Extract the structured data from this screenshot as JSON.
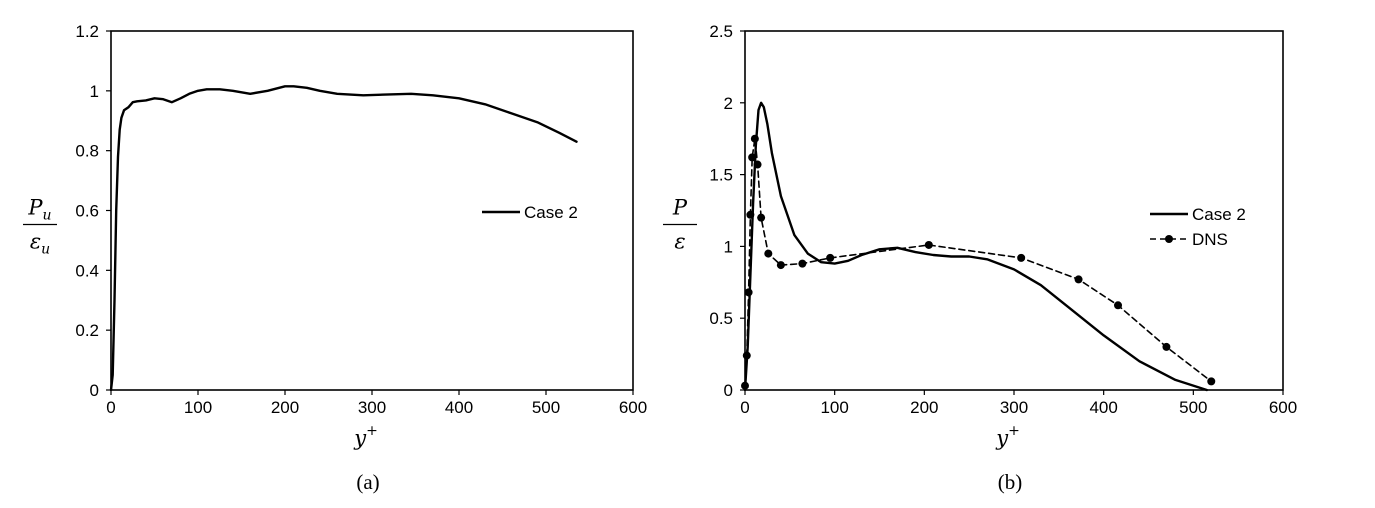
{
  "chart_data": [
    {
      "type": "line",
      "caption": "(a)",
      "xlabel": "y+",
      "ylabel": "P_u / ε_u",
      "ylabel_num": "P",
      "ylabel_num_sub": "u",
      "ylabel_den": "ε",
      "ylabel_den_sub": "u",
      "xlabel_base": "y",
      "xlabel_sup": "+",
      "xlim": [
        0,
        600
      ],
      "ylim": [
        0,
        1.2
      ],
      "xticks": [
        "0",
        "100",
        "200",
        "300",
        "400",
        "500",
        "600"
      ],
      "yticks": [
        "0",
        "0.2",
        "0.4",
        "0.6",
        "0.8",
        "1",
        "1.2"
      ],
      "grid": false,
      "legend_position": "right-middle",
      "series": [
        {
          "name": "Case 2",
          "style": "solid",
          "markers": false,
          "x": [
            0,
            2,
            4,
            6,
            8,
            10,
            12,
            15,
            20,
            25,
            30,
            40,
            50,
            60,
            70,
            80,
            90,
            100,
            110,
            125,
            140,
            160,
            180,
            200,
            210,
            225,
            240,
            260,
            290,
            320,
            345,
            370,
            400,
            430,
            460,
            490,
            515,
            535
          ],
          "y": [
            0,
            0.05,
            0.3,
            0.6,
            0.78,
            0.87,
            0.91,
            0.935,
            0.945,
            0.962,
            0.965,
            0.968,
            0.975,
            0.972,
            0.962,
            0.975,
            0.99,
            1.0,
            1.005,
            1.005,
            1.0,
            0.99,
            1.0,
            1.015,
            1.015,
            1.01,
            1.0,
            0.99,
            0.985,
            0.988,
            0.99,
            0.985,
            0.975,
            0.955,
            0.925,
            0.895,
            0.86,
            0.83
          ]
        }
      ]
    },
    {
      "type": "line",
      "caption": "(b)",
      "xlabel": "y+",
      "ylabel": "P / ε",
      "ylabel_num": "P",
      "ylabel_den": "ε",
      "xlabel_base": "y",
      "xlabel_sup": "+",
      "xlim": [
        0,
        600
      ],
      "ylim": [
        0,
        2.5
      ],
      "xticks": [
        "0",
        "100",
        "200",
        "300",
        "400",
        "500",
        "600"
      ],
      "yticks": [
        "0",
        "0.5",
        "1",
        "1.5",
        "2",
        "2.5"
      ],
      "grid": false,
      "legend_position": "right-middle",
      "series": [
        {
          "name": "Case 2",
          "style": "solid",
          "markers": false,
          "x": [
            0,
            3,
            6,
            9,
            12,
            15,
            18,
            21,
            25,
            30,
            40,
            55,
            70,
            85,
            100,
            115,
            130,
            150,
            170,
            190,
            210,
            230,
            250,
            270,
            300,
            330,
            360,
            400,
            440,
            480,
            515
          ],
          "y": [
            0,
            0.3,
            0.8,
            1.3,
            1.7,
            1.95,
            2.0,
            1.97,
            1.85,
            1.65,
            1.35,
            1.08,
            0.95,
            0.89,
            0.88,
            0.9,
            0.94,
            0.98,
            0.99,
            0.96,
            0.94,
            0.93,
            0.93,
            0.91,
            0.84,
            0.73,
            0.58,
            0.38,
            0.2,
            0.07,
            0.0
          ]
        },
        {
          "name": "DNS",
          "style": "dashed",
          "markers": true,
          "x": [
            0,
            2,
            4,
            6,
            8,
            11,
            14,
            18,
            26,
            40,
            64,
            95,
            205,
            308,
            372,
            416,
            470,
            520
          ],
          "y": [
            0.03,
            0.24,
            0.68,
            1.22,
            1.62,
            1.75,
            1.57,
            1.2,
            0.95,
            0.87,
            0.88,
            0.92,
            1.01,
            0.92,
            0.77,
            0.59,
            0.3,
            0.06
          ],
          "marker_x": [
            0,
            2,
            4,
            6,
            8,
            11,
            14,
            18,
            26,
            40,
            64,
            95,
            205,
            308,
            372,
            416,
            470,
            520
          ],
          "marker_y": [
            0.03,
            0.24,
            0.68,
            1.22,
            1.62,
            1.75,
            1.57,
            1.2,
            0.95,
            0.87,
            0.88,
            0.92,
            1.01,
            0.92,
            0.77,
            0.59,
            0.3,
            0.06
          ]
        }
      ]
    }
  ]
}
